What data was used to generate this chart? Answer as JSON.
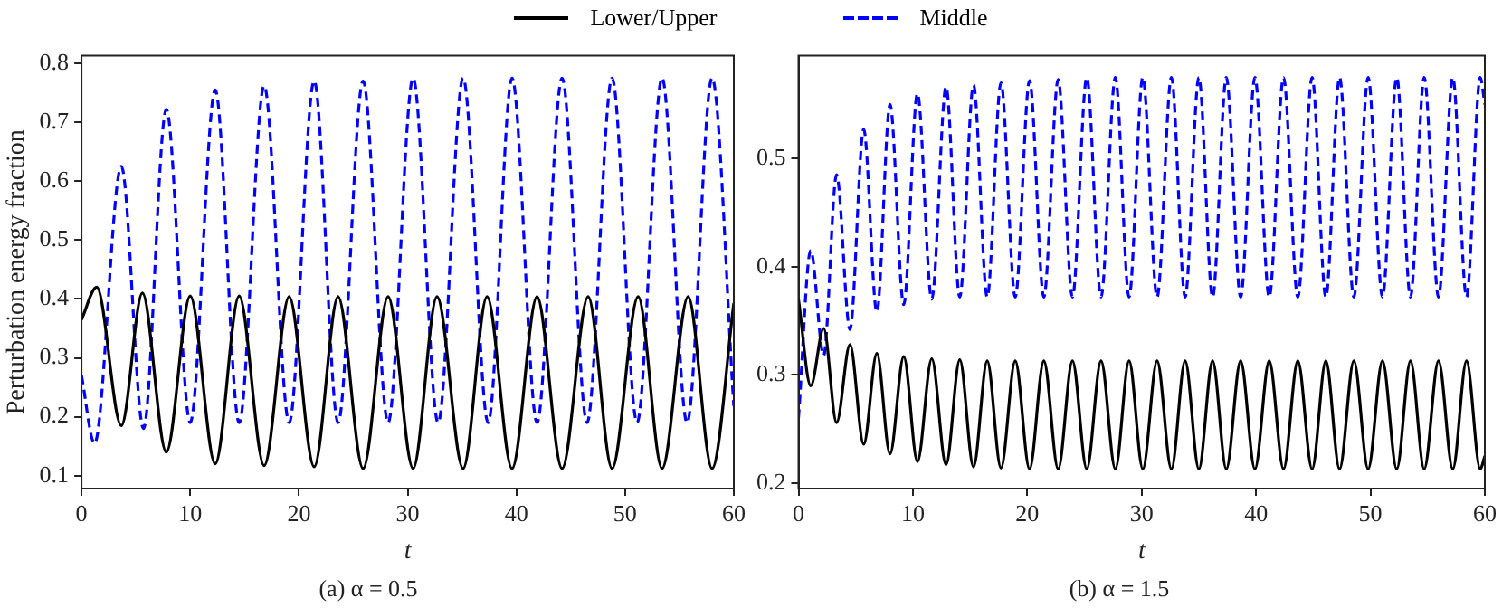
{
  "chart_data": [
    {
      "type": "line",
      "title": "(a) α = 0.5",
      "xlabel": "t",
      "ylabel": "Perturbation energy fraction",
      "xlim": [
        0,
        60
      ],
      "xticks": [
        0,
        10,
        20,
        30,
        40,
        50,
        60
      ],
      "ylim": [
        0.078,
        0.813
      ],
      "yticks": [
        0.1,
        0.2,
        0.3,
        0.4,
        0.5,
        0.6,
        0.7,
        0.8
      ],
      "legend": "top",
      "grid": false,
      "marker": "none",
      "series": [
        {
          "name": "Lower/Upper",
          "color": "#000000",
          "line_style": "solid",
          "x": [
            0,
            1.4,
            3.66,
            5.6,
            7.8,
            10.0,
            12.3,
            14.5,
            16.8,
            19.1,
            21.4,
            23.6,
            25.9,
            28.2,
            30.5,
            32.7,
            35.1,
            37.3,
            39.6,
            41.9,
            44.2,
            46.6,
            48.8,
            51.2,
            53.4,
            55.8,
            58.0,
            60
          ],
          "values": [
            0.365,
            0.42,
            0.185,
            0.41,
            0.14,
            0.405,
            0.12,
            0.405,
            0.117,
            0.404,
            0.115,
            0.404,
            0.112,
            0.404,
            0.112,
            0.404,
            0.112,
            0.404,
            0.112,
            0.404,
            0.112,
            0.404,
            0.112,
            0.404,
            0.112,
            0.404,
            0.112,
            0.393
          ]
        },
        {
          "name": "Middle",
          "color": "#0000ff",
          "line_style": "dashed",
          "x": [
            0,
            1.2,
            3.66,
            5.7,
            7.8,
            10.0,
            12.3,
            14.5,
            16.8,
            19.1,
            21.4,
            23.6,
            25.9,
            28.2,
            30.5,
            32.8,
            35.1,
            37.4,
            39.6,
            41.9,
            44.2,
            46.5,
            48.8,
            51.1,
            53.4,
            55.7,
            58.0,
            60
          ],
          "values": [
            0.27,
            0.155,
            0.625,
            0.18,
            0.722,
            0.19,
            0.755,
            0.19,
            0.762,
            0.19,
            0.77,
            0.19,
            0.77,
            0.19,
            0.775,
            0.19,
            0.775,
            0.19,
            0.775,
            0.19,
            0.775,
            0.19,
            0.775,
            0.19,
            0.775,
            0.19,
            0.775,
            0.218
          ]
        }
      ]
    },
    {
      "type": "line",
      "title": "(b) α = 1.5",
      "xlabel": "t",
      "xlim": [
        0,
        60
      ],
      "xticks": [
        0,
        10,
        20,
        30,
        40,
        50,
        60
      ],
      "ylim": [
        0.195,
        0.595
      ],
      "yticks": [
        0.2,
        0.3,
        0.4,
        0.5
      ],
      "grid": false,
      "marker": "none",
      "x": [
        0,
        1.07,
        2.2,
        3.33,
        4.5,
        5.7,
        6.85,
        8.0,
        9.2,
        10.4,
        11.65,
        12.9,
        14.1,
        15.3,
        16.5,
        17.7,
        18.95,
        20.2,
        21.45,
        22.7,
        23.95,
        25.2,
        26.45,
        27.7,
        28.9,
        30.1,
        31.35,
        32.6,
        33.8,
        35.0,
        36.2,
        37.4,
        38.65,
        39.9,
        41.15,
        42.4,
        43.65,
        44.9,
        46.1,
        47.3,
        48.55,
        49.8,
        51.05,
        52.3,
        53.5,
        54.7,
        55.95,
        57.2,
        58.4,
        59.6,
        60
      ],
      "series": [
        {
          "color": "#000000",
          "line_style": "solid",
          "values": [
            0.37,
            0.29,
            0.343,
            0.256,
            0.328,
            0.236,
            0.32,
            0.227,
            0.317,
            0.22,
            0.315,
            0.217,
            0.314,
            0.215,
            0.313,
            0.214,
            0.313,
            0.213,
            0.313,
            0.213,
            0.313,
            0.213,
            0.313,
            0.213,
            0.313,
            0.213,
            0.313,
            0.213,
            0.313,
            0.213,
            0.313,
            0.213,
            0.313,
            0.213,
            0.313,
            0.213,
            0.313,
            0.213,
            0.313,
            0.213,
            0.313,
            0.213,
            0.313,
            0.213,
            0.313,
            0.213,
            0.313,
            0.213,
            0.313,
            0.213,
            0.225
          ]
        },
        {
          "color": "#0000ff",
          "line_style": "dashed",
          "values": [
            0.26,
            0.415,
            0.318,
            0.485,
            0.342,
            0.527,
            0.358,
            0.55,
            0.365,
            0.56,
            0.37,
            0.566,
            0.372,
            0.568,
            0.372,
            0.57,
            0.372,
            0.572,
            0.372,
            0.573,
            0.372,
            0.575,
            0.372,
            0.575,
            0.372,
            0.575,
            0.372,
            0.575,
            0.372,
            0.575,
            0.372,
            0.575,
            0.372,
            0.575,
            0.372,
            0.575,
            0.372,
            0.575,
            0.372,
            0.575,
            0.372,
            0.575,
            0.372,
            0.575,
            0.372,
            0.575,
            0.372,
            0.575,
            0.372,
            0.575,
            0.55
          ]
        }
      ]
    }
  ]
}
